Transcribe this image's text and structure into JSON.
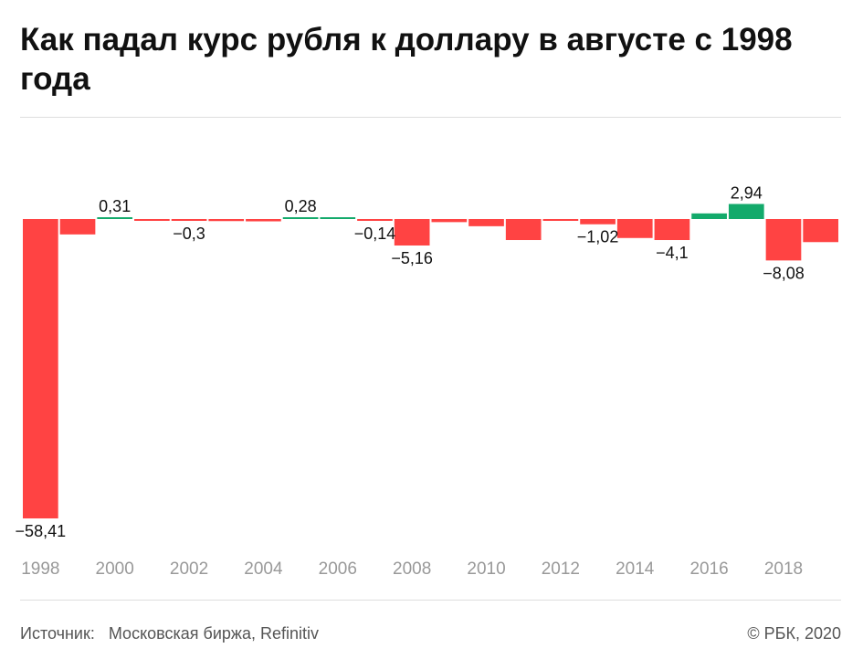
{
  "title": "Как падал курс рубля к доллару в августе с 1998 года",
  "colors": {
    "negative": "#ff4343",
    "positive": "#13aa6b",
    "text": "#111111",
    "muted": "#555555",
    "tick": "#999999"
  },
  "chart_data": {
    "type": "bar",
    "categories": [
      "1998",
      "1999",
      "2000",
      "2001",
      "2002",
      "2003",
      "2004",
      "2005",
      "2006",
      "2007",
      "2008",
      "2009",
      "2010",
      "2011",
      "2012",
      "2013",
      "2014",
      "2015",
      "2016",
      "2017",
      "2018",
      "2019"
    ],
    "values": [
      -58.41,
      -3.0,
      0.31,
      -0.25,
      -0.3,
      -0.4,
      -0.45,
      0.28,
      0.25,
      -0.14,
      -5.16,
      -0.6,
      -1.4,
      -4.1,
      -0.3,
      -1.02,
      -3.7,
      -4.1,
      1.1,
      2.94,
      -8.08,
      -4.5
    ],
    "data_labels": [
      {
        "index": 0,
        "text": "−58,41"
      },
      {
        "index": 2,
        "text": "0,31"
      },
      {
        "index": 4,
        "text": "−0,3"
      },
      {
        "index": 7,
        "text": "0,28"
      },
      {
        "index": 9,
        "text": "−0,14"
      },
      {
        "index": 10,
        "text": "−5,16"
      },
      {
        "index": 15,
        "text": "−1,02"
      },
      {
        "index": 17,
        "text": "−4,1"
      },
      {
        "index": 19,
        "text": "2,94"
      },
      {
        "index": 20,
        "text": "−8,08"
      }
    ],
    "x_tick_labels": [
      "1998",
      "2000",
      "2002",
      "2004",
      "2006",
      "2008",
      "2010",
      "2012",
      "2014",
      "2016",
      "2018"
    ],
    "xlabel": "",
    "ylabel": "",
    "ylim": [
      -58.41,
      3
    ],
    "grid": false,
    "legend": "none"
  },
  "footer": {
    "source_label": "Источник:",
    "source_text": "Московская биржа, Refinitiv",
    "copyright": "© РБК, 2020"
  }
}
